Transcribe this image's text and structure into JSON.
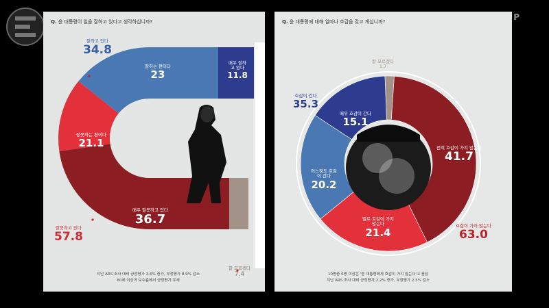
{
  "watermark": "UP",
  "chart_data": [
    {
      "type": "pie",
      "title": "윤 대통령이 일을 잘하고 있다고 생각하십니까?",
      "question_prefix": "Q.",
      "slices": [
        {
          "label": "매우 잘하고 있다",
          "value": 11.8,
          "color": "#2e3c8f"
        },
        {
          "label": "잘하는 편이다",
          "value": 23.0,
          "color": "#4a78b2"
        },
        {
          "label": "잘못하는 편이다",
          "value": 21.1,
          "color": "#e2313b"
        },
        {
          "label": "매우 잘못하고 있다",
          "value": 36.7,
          "color": "#8c1d22"
        },
        {
          "label": "잘 모르겠다",
          "value": 7.4,
          "color": "#a39287"
        }
      ],
      "totals": [
        {
          "label": "잘하고 있다",
          "value": "34.8",
          "color": "#3a5fa6"
        },
        {
          "label": "잘못하고 있다",
          "value": "57.8",
          "color": "#d12a34"
        }
      ],
      "notes": [
        "지난 ARS 조사 대비 긍정평가 3.6% 증가, 부정평가 8.9% 감소",
        "60세 이상과 보수층에서 긍정평가 우세"
      ]
    },
    {
      "type": "pie",
      "title": "윤 대통령에 대해 얼마나 호감을 갖고 계십니까?",
      "question_prefix": "Q.",
      "slices": [
        {
          "label": "잘 모르겠다",
          "value": 1.7,
          "color": "#a39287"
        },
        {
          "label": "전혀 호감이 가지 않는다",
          "value": 41.7,
          "color": "#8c1d22"
        },
        {
          "label": "별로 호감이 가지않는다",
          "value": 21.4,
          "color": "#e2313b"
        },
        {
          "label": "어느정도 호감이 간다",
          "value": 20.2,
          "color": "#4a78b2"
        },
        {
          "label": "매우 호감이 간다",
          "value": 15.1,
          "color": "#2e3c8f"
        }
      ],
      "totals": [
        {
          "label": "호감이 간다",
          "value": "35.3",
          "color": "#2e3c8f"
        },
        {
          "label": "호감이 가지 않는다",
          "value": "63.0",
          "color": "#b8242d"
        }
      ],
      "notes": [
        "10명중 6명 이상은 '윤 대통령에게 호감이 가지 않는다'고 응답",
        "지난 ARS 조사 대비 긍정평가 2.2% 증가, 부정평가 2.5% 감소"
      ]
    }
  ]
}
